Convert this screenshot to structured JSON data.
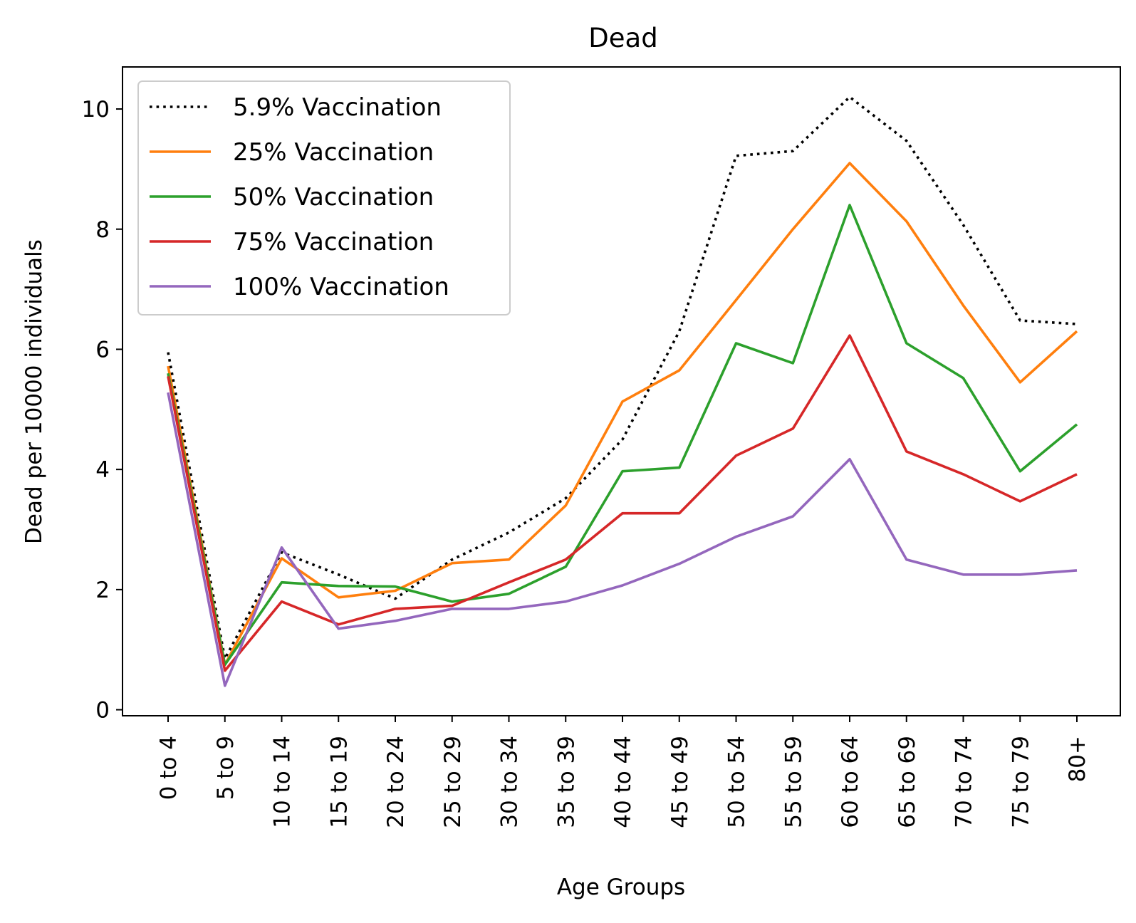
{
  "chart_data": {
    "type": "line",
    "title": "Dead",
    "xlabel": "Age Groups",
    "ylabel": "Dead per 10000 individuals",
    "categories": [
      "0 to 4",
      "5 to 9",
      "10 to 14",
      "15 to 19",
      "20 to 24",
      "25 to 29",
      "30 to 34",
      "35 to 39",
      "40 to 44",
      "45 to 49",
      "50 to 54",
      "55 to 59",
      "60 to 64",
      "65 to 69",
      "70 to 74",
      "75 to 79",
      "80+"
    ],
    "ylim": [
      -0.1,
      10.7
    ],
    "yticks": [
      0,
      2,
      4,
      6,
      8,
      10
    ],
    "ytick_labels": [
      "0",
      "2",
      "4",
      "6",
      "8",
      "10"
    ],
    "grid": false,
    "legend_position": "upper-left",
    "series": [
      {
        "name": "5.9% Vaccination",
        "color": "#000000",
        "style": "dotted",
        "values": [
          5.95,
          0.85,
          2.62,
          2.25,
          1.85,
          2.5,
          2.95,
          3.52,
          4.5,
          6.3,
          9.22,
          9.3,
          10.2,
          9.47,
          8.07,
          6.48,
          6.42
        ]
      },
      {
        "name": "25% Vaccination",
        "color": "#ff7f0e",
        "style": "solid",
        "values": [
          5.72,
          0.75,
          2.52,
          1.87,
          1.98,
          2.44,
          2.5,
          3.4,
          5.13,
          5.65,
          6.82,
          8.0,
          9.1,
          8.13,
          6.73,
          5.45,
          6.3
        ]
      },
      {
        "name": "50% Vaccination",
        "color": "#2ca02c",
        "style": "solid",
        "values": [
          5.6,
          0.75,
          2.12,
          2.06,
          2.05,
          1.8,
          1.93,
          2.38,
          3.97,
          4.03,
          6.1,
          5.77,
          8.4,
          6.1,
          5.52,
          3.97,
          4.75
        ]
      },
      {
        "name": "75% Vaccination",
        "color": "#d62728",
        "style": "solid",
        "values": [
          5.55,
          0.65,
          1.8,
          1.42,
          1.68,
          1.73,
          2.12,
          2.5,
          3.27,
          3.27,
          4.23,
          4.68,
          6.23,
          4.3,
          3.92,
          3.47,
          3.92
        ]
      },
      {
        "name": "100% Vaccination",
        "color": "#9467bd",
        "style": "solid",
        "values": [
          5.28,
          0.4,
          2.7,
          1.35,
          1.48,
          1.68,
          1.68,
          1.8,
          2.07,
          2.43,
          2.88,
          3.22,
          4.17,
          2.5,
          2.25,
          2.25,
          2.32
        ]
      }
    ]
  }
}
